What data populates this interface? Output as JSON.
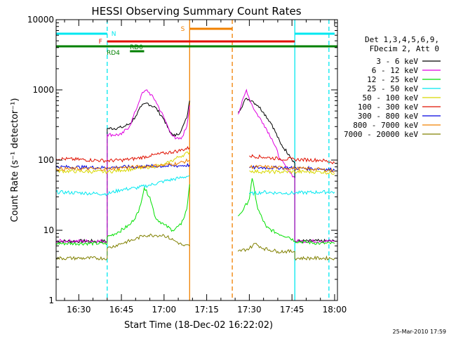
{
  "chart_data": {
    "type": "line",
    "title": "HESSI Observing Summary Count Rates",
    "xlabel": "Start Time (18-Dec-02 16:22:02)",
    "ylabel": "Count Rate (s⁻¹ detector⁻¹)",
    "y_scale": "log",
    "ylim": [
      1,
      10000
    ],
    "xlim": [
      "16:22:02",
      "18:01:00"
    ],
    "x_ticks": [
      "16:30",
      "16:45",
      "17:00",
      "17:15",
      "17:30",
      "17:45",
      "18:00"
    ],
    "y_ticks": [
      "1",
      "10",
      "100",
      "1000",
      "10000"
    ],
    "footer": "25-Mar-2010 17:59",
    "legend_placement": "right",
    "legend_header": [
      "Det 1,3,4,5,6,9,",
      "FDecim 2, Att 0"
    ],
    "series": [
      {
        "name": "3 - 6 keV",
        "color": "#000000",
        "x": [
          "16:22",
          "16:40",
          "16:40",
          "16:45",
          "16:48",
          "16:50",
          "16:52",
          "16:54",
          "16:57",
          "17:00",
          "17:02",
          "17:04",
          "17:06",
          "17:08",
          "17:09",
          "17:24",
          "17:26",
          "17:29",
          "17:31",
          "17:33",
          "17:35",
          "17:38",
          "17:41",
          "17:44",
          "17:46",
          "17:46",
          "17:55",
          "18:00"
        ],
        "y": [
          7,
          7,
          280,
          290,
          330,
          420,
          580,
          650,
          560,
          380,
          250,
          220,
          260,
          400,
          700,
          null,
          480,
          760,
          700,
          600,
          480,
          320,
          170,
          120,
          90,
          7,
          7,
          7
        ]
      },
      {
        "name": "6 - 12 keV",
        "color": "#e000e0",
        "x": [
          "16:22",
          "16:40",
          "16:40",
          "16:45",
          "16:48",
          "16:50",
          "16:52",
          "16:54",
          "16:57",
          "17:00",
          "17:02",
          "17:04",
          "17:06",
          "17:08",
          "17:09",
          "17:24",
          "17:26",
          "17:29",
          "17:30",
          "17:32",
          "17:35",
          "17:38",
          "17:41",
          "17:44",
          "17:46",
          "17:46",
          "17:55",
          "18:00"
        ],
        "y": [
          7,
          7,
          230,
          230,
          310,
          500,
          850,
          1000,
          700,
          400,
          260,
          200,
          200,
          300,
          600,
          null,
          450,
          1000,
          750,
          500,
          330,
          200,
          100,
          70,
          55,
          7,
          7,
          7
        ]
      },
      {
        "name": "12 - 25 keV",
        "color": "#00e000",
        "x": [
          "16:22",
          "16:40",
          "16:40",
          "16:44",
          "16:48",
          "16:51",
          "16:53",
          "16:55",
          "16:57",
          "17:00",
          "17:03",
          "17:06",
          "17:08",
          "17:09",
          "17:24",
          "17:26",
          "17:28",
          "17:30",
          "17:31",
          "17:33",
          "17:36",
          "17:40",
          "17:44",
          "17:46",
          "17:55",
          "18:00"
        ],
        "y": [
          6.5,
          6.5,
          8,
          9.5,
          12,
          18,
          40,
          30,
          15,
          12,
          10,
          12,
          20,
          45,
          null,
          16,
          20,
          28,
          55,
          20,
          11,
          9,
          8,
          7,
          6.5,
          6.5
        ]
      },
      {
        "name": "25 - 50 keV",
        "color": "#00e8f0",
        "x": [
          "16:22",
          "16:40",
          "16:45",
          "16:50",
          "16:55",
          "17:00",
          "17:05",
          "17:09",
          "17:24",
          "17:30",
          "17:35",
          "17:40",
          "17:46",
          "17:55",
          "18:00"
        ],
        "y": [
          35,
          33,
          38,
          40,
          44,
          50,
          55,
          60,
          null,
          33,
          35,
          34,
          34,
          35,
          35
        ]
      },
      {
        "name": "50 - 100 keV",
        "color": "#d8d800",
        "x": [
          "16:22",
          "16:40",
          "16:45",
          "16:50",
          "16:55",
          "17:00",
          "17:05",
          "17:09",
          "17:24",
          "17:30",
          "17:35",
          "17:40",
          "17:46",
          "17:55",
          "18:00"
        ],
        "y": [
          70,
          68,
          72,
          75,
          80,
          85,
          110,
          130,
          null,
          70,
          68,
          68,
          68,
          68,
          65
        ]
      },
      {
        "name": "100 - 300 keV",
        "color": "#e01000",
        "x": [
          "16:22",
          "16:40",
          "16:45",
          "16:50",
          "16:55",
          "17:00",
          "17:05",
          "17:09",
          "17:24",
          "17:30",
          "17:35",
          "17:40",
          "17:46",
          "17:55",
          "18:00"
        ],
        "y": [
          105,
          98,
          100,
          105,
          115,
          125,
          135,
          150,
          null,
          115,
          110,
          105,
          102,
          100,
          92
        ]
      },
      {
        "name": "300 - 800 keV",
        "color": "#0000e0",
        "x": [
          "16:22",
          "16:40",
          "16:45",
          "16:50",
          "16:55",
          "17:00",
          "17:05",
          "17:09",
          "17:24",
          "17:30",
          "17:35",
          "17:40",
          "17:46",
          "17:55",
          "18:00"
        ],
        "y": [
          80,
          78,
          80,
          80,
          82,
          82,
          83,
          85,
          null,
          78,
          78,
          78,
          77,
          75,
          72
        ]
      },
      {
        "name": "800 - 7000 keV",
        "color": "#f08000",
        "x": [
          "16:22",
          "16:40",
          "16:45",
          "16:50",
          "16:55",
          "17:00",
          "17:05",
          "17:09",
          "17:24",
          "17:30",
          "17:35",
          "17:40",
          "17:46",
          "17:55",
          "18:00"
        ],
        "y": [
          75,
          75,
          78,
          80,
          82,
          85,
          90,
          100,
          null,
          80,
          80,
          78,
          76,
          74,
          70
        ]
      },
      {
        "name": "7000 - 20000 keV",
        "color": "#808000",
        "x": [
          "16:22",
          "16:40",
          "16:40",
          "16:45",
          "16:50",
          "16:53",
          "16:57",
          "17:00",
          "17:04",
          "17:07",
          "17:09",
          "17:24",
          "17:26",
          "17:30",
          "17:32",
          "17:35",
          "17:40",
          "17:46",
          "17:46",
          "17:55",
          "18:00"
        ],
        "y": [
          4,
          4,
          5.5,
          6.5,
          7.5,
          8.5,
          8.5,
          8.5,
          7,
          6,
          6,
          null,
          5,
          5.5,
          6.5,
          5.5,
          5,
          5,
          4,
          4,
          4
        ]
      }
    ],
    "status_bars": [
      {
        "label": "N",
        "color": "#00e8f0",
        "segments": [
          [
            "16:22",
            "16:40"
          ],
          [
            "17:46",
            "18:00"
          ]
        ]
      },
      {
        "label": "S",
        "color": "#f08000",
        "segments": [
          [
            "17:09",
            "17:24"
          ]
        ]
      },
      {
        "label": "F",
        "color": "#e01000",
        "segments": [
          [
            "16:40",
            "17:46"
          ]
        ]
      },
      {
        "label": "RD0",
        "color": "#008000",
        "segments": [
          [
            "16:22",
            "18:01"
          ]
        ]
      },
      {
        "label": "RD4",
        "color": "#008000",
        "segments": [
          [
            "16:48",
            "16:53"
          ]
        ]
      }
    ],
    "vertical_markers": [
      {
        "t": "16:40",
        "color": "#00e8f0",
        "style": "dashed"
      },
      {
        "t": "17:46",
        "color": "#00e8f0",
        "style": "solid"
      },
      {
        "t": "17:58",
        "color": "#00e8f0",
        "style": "dashed"
      },
      {
        "t": "17:09",
        "color": "#f08000",
        "style": "solid"
      },
      {
        "t": "17:24",
        "color": "#f08000",
        "style": "dashed"
      }
    ]
  }
}
